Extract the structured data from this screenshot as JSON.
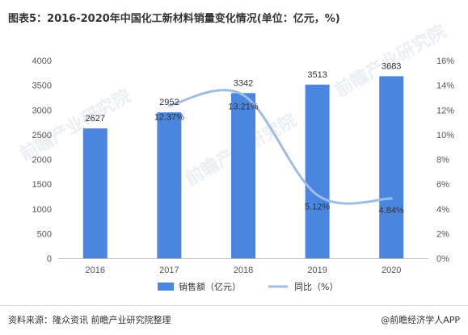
{
  "title": "图表5：2016-2020年中国化工新材料销量变化情况(单位：亿元，%)",
  "footer": {
    "source": "资料来源：隆众资讯 前瞻产业研究院整理",
    "brand": "@前瞻经济学人APP"
  },
  "watermark": "前瞻产业研究院",
  "colors": {
    "bar": "#4a86e0",
    "line": "#9dbde6"
  },
  "chart_data": {
    "type": "bar",
    "categories": [
      "2016",
      "2017",
      "2018",
      "2019",
      "2020"
    ],
    "series": [
      {
        "name": "销售额（亿元）",
        "type": "bar",
        "axis": "left",
        "values": [
          2627,
          2952,
          3342,
          3513,
          3683
        ],
        "labels": [
          "2627",
          "2952",
          "3342",
          "3513",
          "3683"
        ]
      },
      {
        "name": "同比（%）",
        "type": "line",
        "axis": "right",
        "smooth": true,
        "values": [
          null,
          12.37,
          13.21,
          5.12,
          4.84
        ],
        "labels": [
          "",
          "12.37%",
          "13.21%",
          "5.12%",
          "4.84%"
        ]
      }
    ],
    "y_left": {
      "ylim": [
        0,
        4000
      ],
      "ticks": [
        "0",
        "500",
        "1000",
        "1500",
        "2000",
        "2500",
        "3000",
        "3500",
        "4000"
      ]
    },
    "y_right": {
      "ylim": [
        0,
        16
      ],
      "ticks": [
        "0%",
        "2%",
        "4%",
        "6%",
        "8%",
        "10%",
        "12%",
        "14%",
        "16%"
      ]
    },
    "grid": false,
    "legend_position": "bottom"
  }
}
